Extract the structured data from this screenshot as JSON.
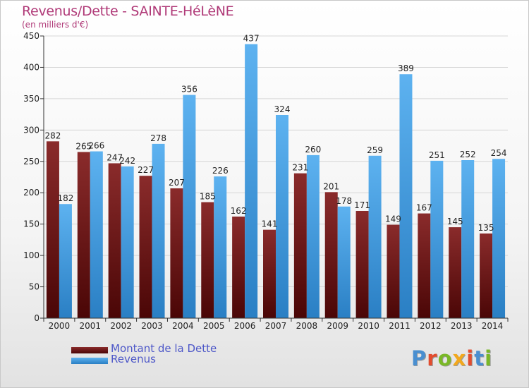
{
  "title": "Revenus/Dette - SAINTE-HéLèNE",
  "subtitle": "(en milliers d'€)",
  "logo": {
    "text": "Proxiti",
    "colors": [
      "#4a8fd0",
      "#e34c2e",
      "#7ab827",
      "#f2a81d",
      "#e34c2e",
      "#4a8fd0",
      "#7ab827"
    ]
  },
  "colors": {
    "dette": "#7a1f1f",
    "revenus": "#4aa3e8"
  },
  "chart_data": {
    "type": "bar",
    "title": "Revenus/Dette - SAINTE-HéLèNE",
    "xlabel": "",
    "ylabel": "(en milliers d'€)",
    "ylim": [
      0,
      450
    ],
    "yticks": [
      0,
      50,
      100,
      150,
      200,
      250,
      300,
      350,
      400,
      450
    ],
    "grid": true,
    "legend_position": "bottom-left",
    "categories": [
      "2000",
      "2001",
      "2002",
      "2003",
      "2004",
      "2005",
      "2006",
      "2007",
      "2008",
      "2009",
      "2010",
      "2011",
      "2012",
      "2013",
      "2014"
    ],
    "series": [
      {
        "name": "Montant de la Dette",
        "values": [
          282,
          265,
          247,
          227,
          207,
          185,
          162,
          141,
          231,
          201,
          171,
          149,
          167,
          145,
          135
        ]
      },
      {
        "name": "Revenus",
        "values": [
          182,
          266,
          242,
          278,
          356,
          226,
          437,
          324,
          260,
          178,
          259,
          389,
          251,
          252,
          254
        ]
      }
    ]
  }
}
